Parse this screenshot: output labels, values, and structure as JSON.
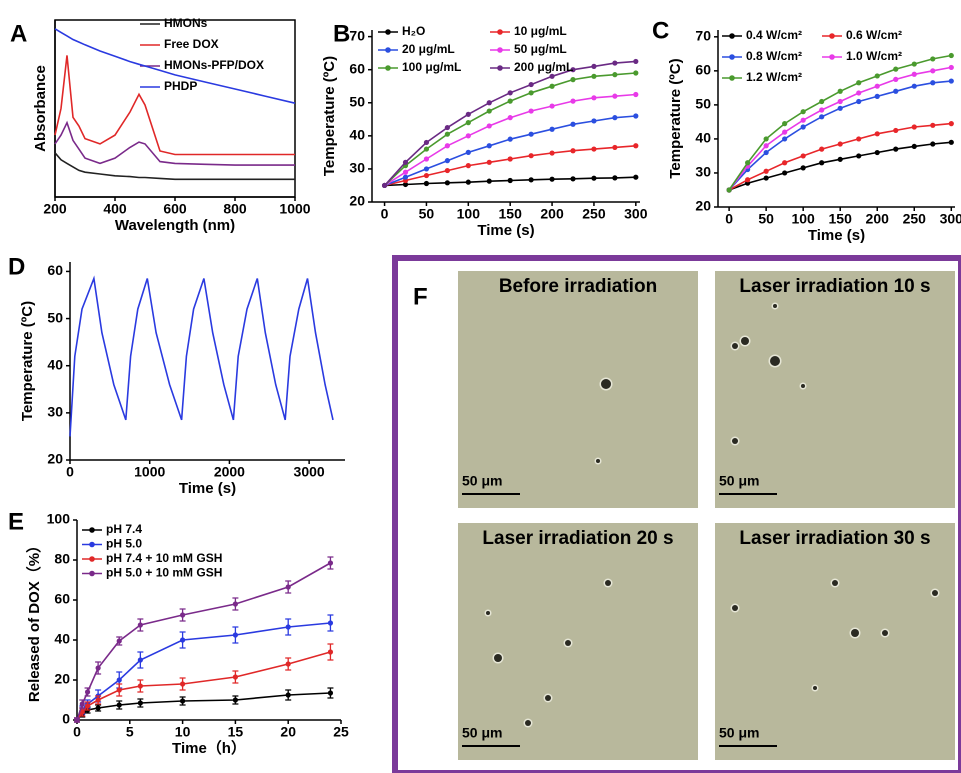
{
  "chart_data": [
    {
      "panel": "A",
      "type": "line",
      "xlabel": "Wavelength (nm)",
      "ylabel": "Absorbance",
      "x": [
        200,
        220,
        240,
        260,
        280,
        300,
        350,
        400,
        450,
        480,
        500,
        550,
        600,
        700,
        800,
        900,
        1000
      ],
      "xlim": [
        200,
        1000
      ],
      "xticks": [
        200,
        400,
        600,
        800,
        1000
      ],
      "ylim": [
        0,
        10
      ],
      "markers": false,
      "box": true,
      "series": [
        {
          "name": "HMONs",
          "color": "#222222",
          "values": [
            2.5,
            2.1,
            1.9,
            1.7,
            1.5,
            1.4,
            1.3,
            1.2,
            1.15,
            1.1,
            1.1,
            1.05,
            1,
            1,
            1,
            1,
            1
          ]
        },
        {
          "name": "Free DOX",
          "color": "#e02828",
          "values": [
            3.5,
            5,
            8,
            4.5,
            4,
            3.3,
            3,
            3.5,
            4.8,
            5.8,
            5.2,
            2.6,
            2.4,
            2.4,
            2.4,
            2.4,
            2.4
          ]
        },
        {
          "name": "HMONs-PFP/DOX",
          "color": "#7a2a8a",
          "values": [
            3,
            3.5,
            4.2,
            3.2,
            2.7,
            2.2,
            1.9,
            2.2,
            2.8,
            3.1,
            3,
            2,
            1.9,
            1.85,
            1.8,
            1.8,
            1.8
          ]
        },
        {
          "name": "PHDP",
          "color": "#2a3ae0",
          "values": [
            9.5,
            9.3,
            9.1,
            8.9,
            8.75,
            8.6,
            8.25,
            7.95,
            7.65,
            7.5,
            7.4,
            7.15,
            6.9,
            6.5,
            6.1,
            5.7,
            5.3
          ]
        }
      ]
    },
    {
      "panel": "B",
      "type": "line",
      "xlabel": "Time (s)",
      "ylabel": "Temperature (ºC)",
      "x": [
        0,
        25,
        50,
        75,
        100,
        125,
        150,
        175,
        200,
        225,
        250,
        275,
        300
      ],
      "xlim": [
        -15,
        305
      ],
      "xticks": [
        0,
        50,
        100,
        150,
        200,
        250,
        300
      ],
      "ylim": [
        20,
        72
      ],
      "yticks": [
        20,
        30,
        40,
        50,
        60,
        70
      ],
      "markers": true,
      "box": false,
      "series": [
        {
          "name": "H₂O",
          "color": "#000000",
          "values": [
            25,
            25.3,
            25.6,
            25.8,
            26,
            26.3,
            26.5,
            26.7,
            26.9,
            27,
            27.2,
            27.3,
            27.5
          ]
        },
        {
          "name": "10 μg/mL",
          "color": "#e8262a",
          "values": [
            25,
            26.5,
            28,
            29.5,
            31,
            32,
            33,
            34,
            34.8,
            35.5,
            36,
            36.5,
            37
          ]
        },
        {
          "name": "20 μg/mL",
          "color": "#2b4fe0",
          "values": [
            25,
            27.5,
            30,
            32.5,
            35,
            37,
            39,
            40.5,
            42,
            43.5,
            44.5,
            45.5,
            46
          ]
        },
        {
          "name": "50 μg/mL",
          "color": "#e83ae8",
          "values": [
            25,
            29,
            33,
            37,
            40,
            43,
            45.5,
            47.5,
            49,
            50.5,
            51.5,
            52,
            52.5
          ]
        },
        {
          "name": "100 μg/mL",
          "color": "#4a9a2e",
          "values": [
            25,
            31,
            36,
            40.5,
            44,
            47.5,
            50.5,
            53,
            55,
            57,
            58,
            58.5,
            59
          ]
        },
        {
          "name": "200 μg/mL",
          "color": "#6a2a84",
          "values": [
            25,
            32,
            38,
            42.5,
            46.5,
            50,
            53,
            55.5,
            58,
            60,
            61,
            62,
            62.5
          ]
        }
      ]
    },
    {
      "panel": "C",
      "type": "line",
      "xlabel": "Time (s)",
      "ylabel": "Temperature (ºC)",
      "x": [
        0,
        25,
        50,
        75,
        100,
        125,
        150,
        175,
        200,
        225,
        250,
        275,
        300
      ],
      "xlim": [
        -15,
        305
      ],
      "xticks": [
        0,
        50,
        100,
        150,
        200,
        250,
        300
      ],
      "ylim": [
        20,
        72
      ],
      "yticks": [
        20,
        30,
        40,
        50,
        60,
        70
      ],
      "markers": true,
      "box": false,
      "series": [
        {
          "name": "0.4 W/cm²",
          "color": "#000000",
          "values": [
            25,
            27,
            28.5,
            30,
            31.5,
            33,
            34,
            35,
            36,
            37,
            37.8,
            38.5,
            39
          ]
        },
        {
          "name": "0.6 W/cm²",
          "color": "#e8262a",
          "values": [
            25,
            28,
            30.5,
            33,
            35,
            37,
            38.5,
            40,
            41.5,
            42.5,
            43.5,
            44,
            44.5
          ]
        },
        {
          "name": "0.8 W/cm²",
          "color": "#2b4fe0",
          "values": [
            25,
            31,
            36,
            40,
            43.5,
            46.5,
            49,
            51,
            52.5,
            54,
            55.5,
            56.5,
            57
          ]
        },
        {
          "name": "1.0 W/cm²",
          "color": "#e83ae8",
          "values": [
            25,
            32,
            38,
            42,
            45.5,
            48.5,
            51,
            53.5,
            55.5,
            57.5,
            59,
            60,
            61
          ]
        },
        {
          "name": "1.2 W/cm²",
          "color": "#4a9a2e",
          "values": [
            25,
            33,
            40,
            44.5,
            48,
            51,
            54,
            56.5,
            58.5,
            60.5,
            62,
            63.5,
            64.5
          ]
        }
      ]
    },
    {
      "panel": "D",
      "type": "line",
      "xlabel": "Time (s)",
      "ylabel": "Temperature (ºC)",
      "x": [
        0,
        60,
        150,
        300,
        400,
        550,
        700,
        760,
        850,
        970,
        1080,
        1250,
        1400,
        1460,
        1550,
        1680,
        1790,
        1930,
        2050,
        2110,
        2220,
        2350,
        2450,
        2580,
        2700,
        2760,
        2870,
        2980,
        3080,
        3200,
        3300
      ],
      "xlim": [
        0,
        3450
      ],
      "xticks": [
        0,
        1000,
        2000,
        3000
      ],
      "ylim": [
        20,
        62
      ],
      "yticks": [
        20,
        30,
        40,
        50,
        60
      ],
      "markers": false,
      "box": false,
      "series": [
        {
          "color": "#2a3ae0",
          "values": [
            25,
            42,
            52,
            58.5,
            47,
            36,
            28.5,
            42,
            52,
            58.5,
            47,
            36,
            28.5,
            42,
            52,
            58.5,
            47,
            36,
            28.5,
            42,
            52,
            58.5,
            47,
            36,
            28.5,
            42,
            52,
            58.5,
            47,
            36,
            28.5
          ]
        }
      ]
    },
    {
      "panel": "E",
      "type": "errorbar",
      "xlabel": "Time（h）",
      "ylabel": "Released of DOX（%）",
      "x": [
        0,
        0.5,
        1,
        2,
        4,
        6,
        10,
        15,
        20,
        24
      ],
      "xlim": [
        0,
        25
      ],
      "xticks": [
        0,
        5,
        10,
        15,
        20,
        25
      ],
      "ylim": [
        0,
        100
      ],
      "yticks": [
        0,
        20,
        40,
        60,
        80,
        100
      ],
      "yticklabels": [
        "0",
        "20",
        "40",
        "60",
        "80",
        "100"
      ],
      "markers": true,
      "box": false,
      "series": [
        {
          "name": "pH 7.4",
          "color": "#000000",
          "values": [
            0,
            3,
            5,
            6,
            7.5,
            8.5,
            9.5,
            10,
            12.5,
            13.5
          ],
          "errors": [
            1,
            1.5,
            1.5,
            1.5,
            2,
            2,
            2,
            2,
            2.5,
            2.5
          ]
        },
        {
          "name": "pH 5.0",
          "color": "#2a3ae0",
          "values": [
            0,
            5,
            8,
            12,
            20,
            30,
            40,
            42.5,
            46.5,
            48.5
          ],
          "errors": [
            1,
            2,
            2,
            3,
            4,
            4,
            4,
            4,
            4,
            4
          ]
        },
        {
          "name": "pH 7.4 + 10 mM GSH",
          "color": "#e02828",
          "values": [
            0,
            4,
            7,
            10,
            15,
            17,
            18,
            21.5,
            28,
            34
          ],
          "errors": [
            1,
            2,
            2,
            2,
            3,
            3,
            3,
            3,
            3,
            4
          ]
        },
        {
          "name": "pH 5.0 + 10 mM GSH",
          "color": "#7a2a8a",
          "values": [
            0,
            8,
            14,
            26,
            39.5,
            47.5,
            52.5,
            58,
            66.5,
            78.5
          ],
          "errors": [
            1,
            2,
            2,
            3,
            2,
            3,
            3,
            3,
            3,
            3
          ]
        }
      ]
    }
  ],
  "micrographs": {
    "panel": "F",
    "images": [
      {
        "title": "Before irradiation",
        "scale_bar": "50 μm"
      },
      {
        "title": "Laser irradiation 10 s",
        "scale_bar": "50 μm"
      },
      {
        "title": "Laser irradiation 20 s",
        "scale_bar": "50 μm"
      },
      {
        "title": "Laser irradiation 30 s",
        "scale_bar": "50 μm"
      }
    ]
  }
}
